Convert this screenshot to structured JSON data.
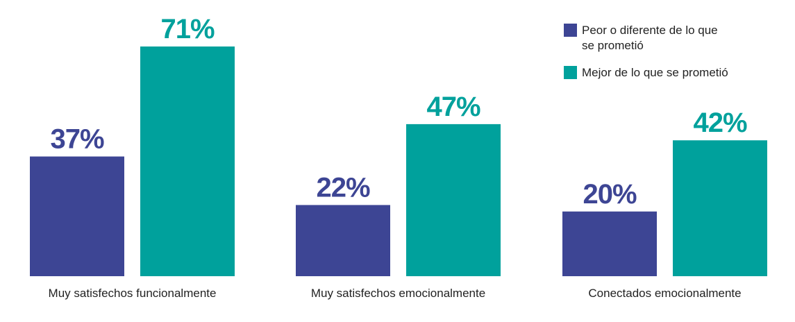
{
  "chart_data": {
    "type": "bar",
    "categories": [
      "Muy satisfechos funcionalmente",
      "Muy satisfechos emocionalmente",
      "Conectados emocionalmente"
    ],
    "series": [
      {
        "name": "Peor o diferente de lo que se prometió",
        "legend_lines": [
          "Peor o diferente de lo que",
          "se prometió"
        ],
        "color": "#3d4594",
        "values": [
          37,
          22,
          20
        ],
        "labels": [
          "37%",
          "22%",
          "20%"
        ]
      },
      {
        "name": "Mejor de lo que se prometió",
        "legend_lines": [
          "Mejor de lo que se prometió"
        ],
        "color": "#00a19c",
        "values": [
          71,
          47,
          42
        ],
        "labels": [
          "71%",
          "47%",
          "42%"
        ]
      }
    ],
    "unit": "%",
    "ylim": [
      0,
      100
    ],
    "grid": false,
    "legend_position": "top-right",
    "title": "",
    "xlabel": "",
    "ylabel": ""
  }
}
